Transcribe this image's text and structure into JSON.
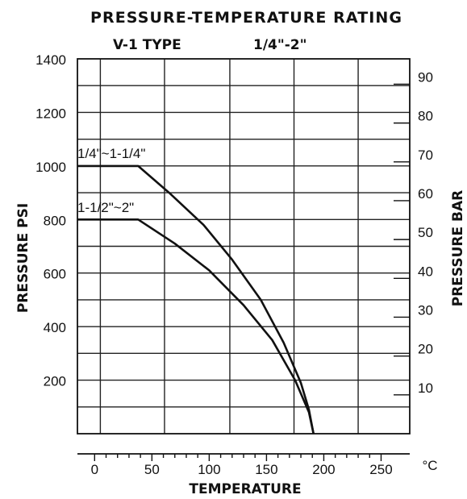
{
  "chart_data": {
    "type": "line",
    "title": "PRESSURE-TEMPERATURE RATING",
    "subtitle_left": "V-1 TYPE",
    "subtitle_right": "1/4\"-2\"",
    "xlabel": "TEMPERATURE",
    "x_unit": "°C",
    "ylabel_left": "PRESSURE PSI",
    "ylabel_right": "PRESSURE BAR",
    "xlim": [
      -15,
      275
    ],
    "ylim_left": [
      0,
      1400
    ],
    "y_ticks_left": [
      200,
      400,
      600,
      800,
      1000,
      1200,
      1400
    ],
    "x_ticks": [
      0,
      50,
      100,
      150,
      200,
      250
    ],
    "y_ticks_right": [
      10,
      20,
      30,
      40,
      50,
      60,
      70,
      80,
      90
    ],
    "psi_per_bar": 14.5038,
    "grid": true,
    "series": [
      {
        "name": "1/4\"~1-1/4\"",
        "x": [
          -15,
          38,
          65,
          95,
          120,
          145,
          165,
          180,
          187,
          191
        ],
        "y": [
          1000,
          1000,
          900,
          780,
          650,
          500,
          340,
          190,
          90,
          0
        ]
      },
      {
        "name": "1-1/2\"~2\"",
        "x": [
          -15,
          38,
          70,
          100,
          130,
          155,
          175,
          187,
          191
        ],
        "y": [
          800,
          800,
          710,
          610,
          480,
          350,
          200,
          80,
          0
        ]
      }
    ]
  }
}
